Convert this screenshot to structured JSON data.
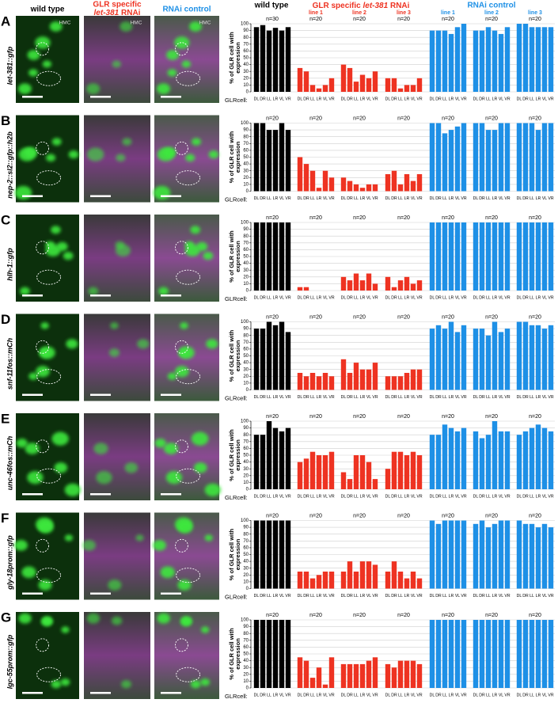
{
  "image_headers": {
    "wild_type": "wild type",
    "glr_prefix": "GLR specific",
    "glr_gene": "let-381",
    "glr_suffix": "RNAi",
    "control": "RNAi control"
  },
  "chart_headers": {
    "wild_type": "wild type",
    "glr_prefix": "GLR specific",
    "glr_gene": "let-381",
    "glr_suffix": "RNAi",
    "control": "RNAi control",
    "glr_lines": [
      "line 1",
      "line 2",
      "line 3"
    ],
    "control_lines": [
      "line 1",
      "line 2",
      "line 3"
    ]
  },
  "panels": [
    {
      "letter": "A",
      "reporter": "let-381::gfp",
      "hmc_labels": [
        "HMC",
        "HMC",
        "HMC"
      ]
    },
    {
      "letter": "B",
      "reporter": "nep-2::sl2::gfp::h2b"
    },
    {
      "letter": "C",
      "reporter": "hlh-1::gfp"
    },
    {
      "letter": "D",
      "reporter": "snf-11fos::mCh"
    },
    {
      "letter": "E",
      "reporter": "unc-46fos::mCh"
    },
    {
      "letter": "F",
      "reporter": "gly-18prom::gfp"
    },
    {
      "letter": "G",
      "reporter": "lgc-55prom::gfp"
    }
  ],
  "chart_data": [
    {
      "type": "bar",
      "ylabel": [
        "% of GLR cell with",
        "expression"
      ],
      "xlabel": "GLRcell:",
      "categories": [
        "DL",
        "DR",
        "LL",
        "LR",
        "VL",
        "VR"
      ],
      "ylim": [
        0,
        100
      ],
      "yticks": [
        0,
        10,
        20,
        30,
        40,
        50,
        60,
        70,
        80,
        90,
        100
      ],
      "grid": true,
      "series": [
        {
          "label": "n=30",
          "color": "#000000",
          "values": [
            95,
            98,
            90,
            94,
            90,
            95
          ]
        },
        {
          "label": "n=20",
          "color": "#ee3322",
          "values": [
            35,
            30,
            10,
            5,
            10,
            20
          ]
        },
        {
          "label": "n=20",
          "color": "#ee3322",
          "values": [
            40,
            35,
            15,
            25,
            20,
            30
          ]
        },
        {
          "label": "n=20",
          "color": "#ee3322",
          "values": [
            20,
            20,
            5,
            10,
            10,
            20
          ]
        },
        {
          "label": "n=20",
          "color": "#1e90e6",
          "values": [
            90,
            90,
            90,
            85,
            95,
            100
          ]
        },
        {
          "label": "n=20",
          "color": "#1e90e6",
          "values": [
            90,
            90,
            95,
            90,
            85,
            95
          ]
        },
        {
          "label": "n=20",
          "color": "#1e90e6",
          "values": [
            100,
            100,
            95,
            95,
            95,
            95
          ]
        }
      ]
    },
    {
      "type": "bar",
      "ylabel": [
        "% of GLR cell with",
        "expression"
      ],
      "xlabel": "GLRcell:",
      "categories": [
        "DL",
        "DR",
        "LL",
        "LR",
        "VL",
        "VR"
      ],
      "ylim": [
        0,
        100
      ],
      "yticks": [
        0,
        10,
        20,
        30,
        40,
        50,
        60,
        70,
        80,
        90,
        100
      ],
      "grid": true,
      "series": [
        {
          "label": "n=20",
          "color": "#000000",
          "values": [
            100,
            100,
            90,
            90,
            100,
            90
          ]
        },
        {
          "label": "n=20",
          "color": "#ee3322",
          "values": [
            50,
            40,
            30,
            5,
            30,
            20
          ]
        },
        {
          "label": "n=20",
          "color": "#ee3322",
          "values": [
            20,
            15,
            10,
            5,
            10,
            10
          ]
        },
        {
          "label": "n=20",
          "color": "#ee3322",
          "values": [
            25,
            30,
            10,
            25,
            15,
            25
          ]
        },
        {
          "label": "n=20",
          "color": "#1e90e6",
          "values": [
            100,
            100,
            85,
            90,
            95,
            100
          ]
        },
        {
          "label": "n=20",
          "color": "#1e90e6",
          "values": [
            100,
            100,
            90,
            90,
            100,
            100
          ]
        },
        {
          "label": "n=20",
          "color": "#1e90e6",
          "values": [
            100,
            100,
            100,
            90,
            100,
            100
          ]
        }
      ]
    },
    {
      "type": "bar",
      "ylabel": [
        "% of GLR cell with",
        "expression"
      ],
      "xlabel": "GLRcell:",
      "categories": [
        "DL",
        "DR",
        "LL",
        "LR",
        "VL",
        "VR"
      ],
      "ylim": [
        0,
        100
      ],
      "yticks": [
        0,
        10,
        20,
        30,
        40,
        50,
        60,
        70,
        80,
        90,
        100
      ],
      "grid": true,
      "series": [
        {
          "label": "n=20",
          "color": "#000000",
          "values": [
            100,
            100,
            100,
            100,
            100,
            100
          ]
        },
        {
          "label": "n=20",
          "color": "#ee3322",
          "values": [
            5,
            5,
            0,
            0,
            0,
            0
          ]
        },
        {
          "label": "n=20",
          "color": "#ee3322",
          "values": [
            20,
            15,
            25,
            15,
            25,
            10
          ]
        },
        {
          "label": "n=20",
          "color": "#ee3322",
          "values": [
            20,
            5,
            15,
            20,
            10,
            15
          ]
        },
        {
          "label": "n=20",
          "color": "#1e90e6",
          "values": [
            100,
            100,
            100,
            100,
            100,
            100
          ]
        },
        {
          "label": "n=20",
          "color": "#1e90e6",
          "values": [
            100,
            100,
            100,
            100,
            100,
            100
          ]
        },
        {
          "label": "n=20",
          "color": "#1e90e6",
          "values": [
            100,
            100,
            100,
            100,
            100,
            100
          ]
        }
      ]
    },
    {
      "type": "bar",
      "ylabel": [
        "% of GLR cell with",
        "expression"
      ],
      "xlabel": "GLRcell:",
      "categories": [
        "DL",
        "DR",
        "LL",
        "LR",
        "VL",
        "VR"
      ],
      "ylim": [
        0,
        100
      ],
      "yticks": [
        0,
        10,
        20,
        30,
        40,
        50,
        60,
        70,
        80,
        90,
        100
      ],
      "grid": true,
      "series": [
        {
          "label": "n=20",
          "color": "#000000",
          "values": [
            90,
            90,
            100,
            95,
            100,
            85
          ]
        },
        {
          "label": "n=20",
          "color": "#ee3322",
          "values": [
            25,
            20,
            25,
            20,
            25,
            20
          ]
        },
        {
          "label": "n=20",
          "color": "#ee3322",
          "values": [
            45,
            25,
            40,
            30,
            30,
            40
          ]
        },
        {
          "label": "n=20",
          "color": "#ee3322",
          "values": [
            20,
            20,
            20,
            25,
            30,
            30
          ]
        },
        {
          "label": "n=20",
          "color": "#1e90e6",
          "values": [
            90,
            95,
            90,
            100,
            85,
            95
          ]
        },
        {
          "label": "n=20",
          "color": "#1e90e6",
          "values": [
            90,
            90,
            80,
            100,
            85,
            90
          ]
        },
        {
          "label": "n=20",
          "color": "#1e90e6",
          "values": [
            100,
            100,
            95,
            95,
            90,
            95
          ]
        }
      ]
    },
    {
      "type": "bar",
      "ylabel": [
        "% of GLR cell with",
        "expression"
      ],
      "xlabel": "GLRcell:",
      "categories": [
        "DL",
        "DR",
        "LL",
        "LR",
        "VL",
        "VR"
      ],
      "ylim": [
        0,
        100
      ],
      "yticks": [
        0,
        10,
        20,
        30,
        40,
        50,
        60,
        70,
        80,
        90,
        100
      ],
      "grid": true,
      "series": [
        {
          "label": "n=20",
          "color": "#000000",
          "values": [
            80,
            80,
            100,
            90,
            85,
            90
          ]
        },
        {
          "label": "n=20",
          "color": "#ee3322",
          "values": [
            40,
            45,
            55,
            50,
            50,
            55
          ]
        },
        {
          "label": "n=20",
          "color": "#ee3322",
          "values": [
            25,
            15,
            50,
            50,
            40,
            15
          ]
        },
        {
          "label": "n=20",
          "color": "#ee3322",
          "values": [
            30,
            55,
            55,
            50,
            55,
            50
          ]
        },
        {
          "label": "n=20",
          "color": "#1e90e6",
          "values": [
            80,
            80,
            95,
            90,
            85,
            90
          ]
        },
        {
          "label": "n=20",
          "color": "#1e90e6",
          "values": [
            85,
            75,
            80,
            100,
            85,
            85
          ]
        },
        {
          "label": "n=20",
          "color": "#1e90e6",
          "values": [
            80,
            85,
            90,
            95,
            90,
            85
          ]
        }
      ]
    },
    {
      "type": "bar",
      "ylabel": [
        "% of GLR cell with",
        "expression"
      ],
      "xlabel": "GLRcell:",
      "categories": [
        "DL",
        "DR",
        "LL",
        "LR",
        "VL",
        "VR"
      ],
      "ylim": [
        0,
        100
      ],
      "yticks": [
        0,
        10,
        20,
        30,
        40,
        50,
        60,
        70,
        80,
        90,
        100
      ],
      "grid": true,
      "series": [
        {
          "label": "n=20",
          "color": "#000000",
          "values": [
            100,
            100,
            100,
            100,
            100,
            100
          ]
        },
        {
          "label": "n=20",
          "color": "#ee3322",
          "values": [
            25,
            25,
            15,
            20,
            25,
            25
          ]
        },
        {
          "label": "n=20",
          "color": "#ee3322",
          "values": [
            25,
            40,
            25,
            40,
            40,
            35
          ]
        },
        {
          "label": "n=20",
          "color": "#ee3322",
          "values": [
            25,
            40,
            25,
            15,
            25,
            15
          ]
        },
        {
          "label": "n=20",
          "color": "#1e90e6",
          "values": [
            100,
            95,
            100,
            100,
            100,
            100
          ]
        },
        {
          "label": "n=20",
          "color": "#1e90e6",
          "values": [
            95,
            100,
            90,
            95,
            100,
            100
          ]
        },
        {
          "label": "n=20",
          "color": "#1e90e6",
          "values": [
            100,
            95,
            95,
            90,
            95,
            90
          ]
        }
      ]
    },
    {
      "type": "bar",
      "ylabel": [
        "% of GLR cell with",
        "expression"
      ],
      "xlabel": "GLRcell:",
      "categories": [
        "DL",
        "DR",
        "LL",
        "LR",
        "VL",
        "VR"
      ],
      "ylim": [
        0,
        100
      ],
      "yticks": [
        0,
        10,
        20,
        30,
        40,
        50,
        60,
        70,
        80,
        90,
        100
      ],
      "grid": true,
      "series": [
        {
          "label": "n=20",
          "color": "#000000",
          "values": [
            100,
            100,
            100,
            100,
            100,
            100
          ]
        },
        {
          "label": "n=20",
          "color": "#ee3322",
          "values": [
            45,
            40,
            15,
            30,
            5,
            45
          ]
        },
        {
          "label": "n=20",
          "color": "#ee3322",
          "values": [
            35,
            35,
            35,
            35,
            40,
            45
          ]
        },
        {
          "label": "n=20",
          "color": "#ee3322",
          "values": [
            35,
            30,
            40,
            40,
            40,
            35
          ]
        },
        {
          "label": "n=20",
          "color": "#1e90e6",
          "values": [
            100,
            100,
            100,
            100,
            100,
            100
          ]
        },
        {
          "label": "n=20",
          "color": "#1e90e6",
          "values": [
            100,
            100,
            100,
            100,
            100,
            100
          ]
        },
        {
          "label": "n=20",
          "color": "#1e90e6",
          "values": [
            100,
            100,
            100,
            100,
            100,
            100
          ]
        }
      ]
    }
  ]
}
